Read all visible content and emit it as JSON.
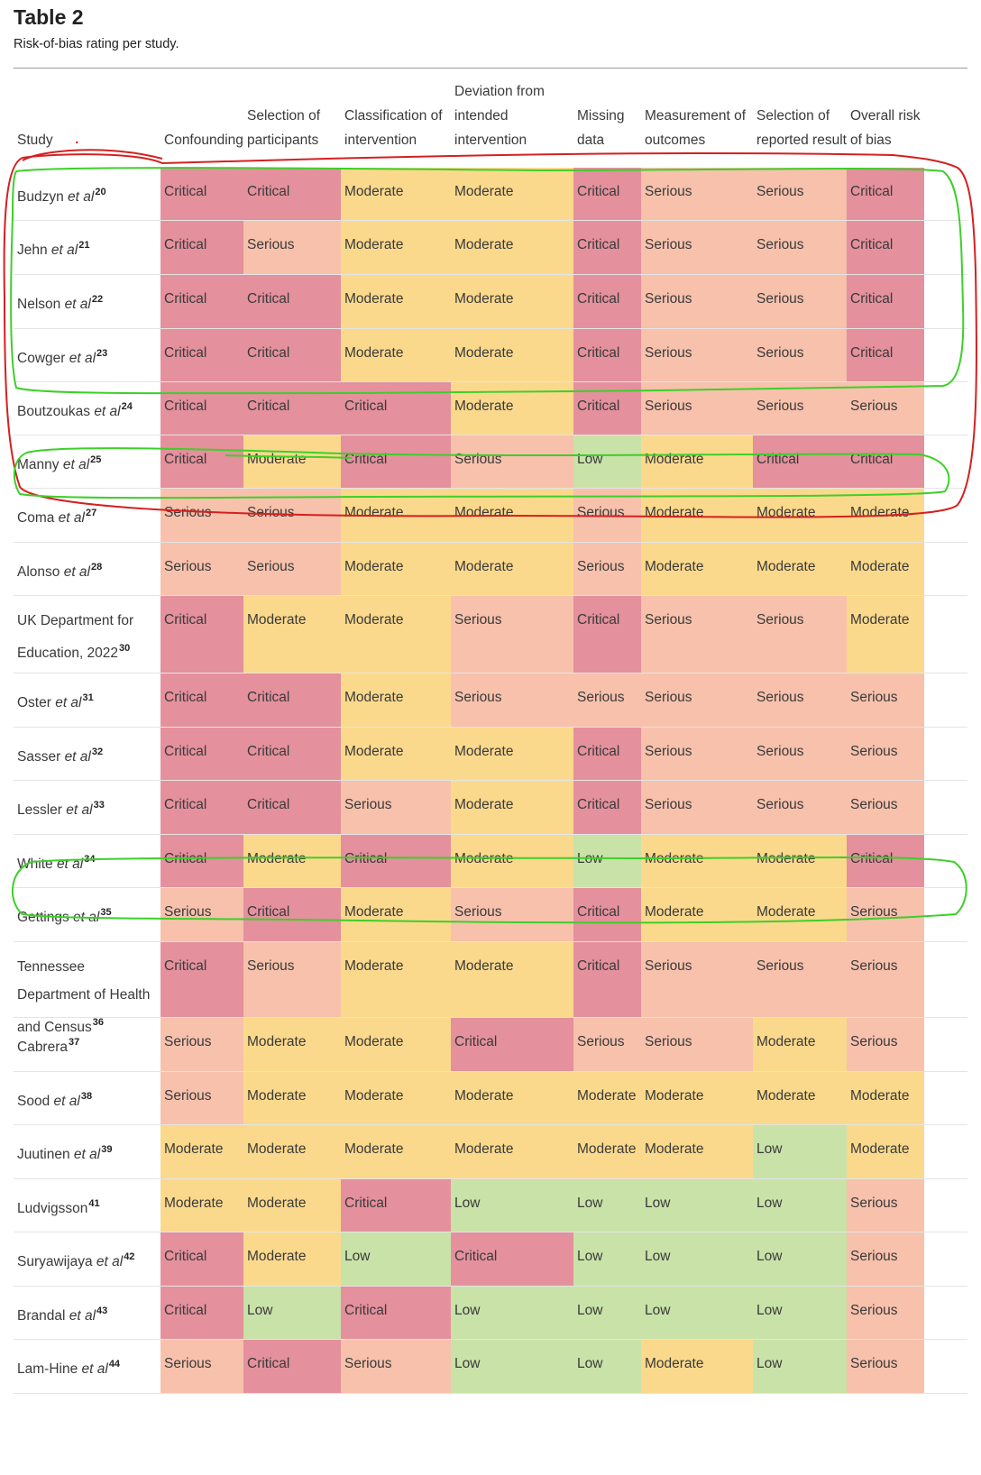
{
  "title": "Table 2",
  "subtitle": "Risk-of-bias rating per study.",
  "header": {
    "study": "Study",
    "columns": [
      [
        "Confounding"
      ],
      [
        "Selection of",
        "participants"
      ],
      [
        "Classification of",
        "intervention"
      ],
      [
        "Deviation from",
        "intended",
        "intervention"
      ],
      [
        "Missing",
        "data"
      ],
      [
        "Measurement of",
        "outcomes"
      ],
      [
        "Selection of",
        "reported result"
      ],
      [
        "Overall risk",
        "of bias"
      ]
    ]
  },
  "rows": [
    {
      "name": "Budzyn",
      "etal": true,
      "ref": "20",
      "ratings": [
        "Critical",
        "Critical",
        "Moderate",
        "Moderate",
        "Critical",
        "Serious",
        "Serious",
        "Critical"
      ]
    },
    {
      "name": "Jehn",
      "etal": true,
      "ref": "21",
      "ratings": [
        "Critical",
        "Serious",
        "Moderate",
        "Moderate",
        "Critical",
        "Serious",
        "Serious",
        "Critical"
      ]
    },
    {
      "name": "Nelson",
      "etal": true,
      "ref": "22",
      "ratings": [
        "Critical",
        "Critical",
        "Moderate",
        "Moderate",
        "Critical",
        "Serious",
        "Serious",
        "Critical"
      ]
    },
    {
      "name": "Cowger",
      "etal": true,
      "ref": "23",
      "ratings": [
        "Critical",
        "Critical",
        "Moderate",
        "Moderate",
        "Critical",
        "Serious",
        "Serious",
        "Critical"
      ]
    },
    {
      "name": "Boutzoukas",
      "etal": true,
      "ref": "24",
      "ratings": [
        "Critical",
        "Critical",
        "Critical",
        "Moderate",
        "Critical",
        "Serious",
        "Serious",
        "Serious"
      ]
    },
    {
      "name": "Manny",
      "etal": true,
      "ref": "25",
      "ratings": [
        "Critical",
        "Moderate",
        "Critical",
        "Serious",
        "Low",
        "Moderate",
        "Critical",
        "Critical"
      ]
    },
    {
      "name": "Coma",
      "etal": true,
      "ref": "27",
      "ratings": [
        "Serious",
        "Serious",
        "Moderate",
        "Moderate",
        "Serious",
        "Moderate",
        "Moderate",
        "Moderate"
      ]
    },
    {
      "name": "Alonso",
      "etal": true,
      "ref": "28",
      "ratings": [
        "Serious",
        "Serious",
        "Moderate",
        "Moderate",
        "Serious",
        "Moderate",
        "Moderate",
        "Moderate"
      ]
    },
    {
      "name": "UK Department for Education, 2022",
      "etal": false,
      "ref": "30",
      "ratings": [
        "Critical",
        "Moderate",
        "Moderate",
        "Serious",
        "Critical",
        "Serious",
        "Serious",
        "Moderate"
      ]
    },
    {
      "name": "Oster",
      "etal": true,
      "ref": "31",
      "ratings": [
        "Critical",
        "Critical",
        "Moderate",
        "Serious",
        "Serious",
        "Serious",
        "Serious",
        "Serious"
      ]
    },
    {
      "name": "Sasser",
      "etal": true,
      "ref": "32",
      "ratings": [
        "Critical",
        "Critical",
        "Moderate",
        "Moderate",
        "Critical",
        "Serious",
        "Serious",
        "Serious"
      ]
    },
    {
      "name": "Lessler",
      "etal": true,
      "ref": "33",
      "ratings": [
        "Critical",
        "Critical",
        "Serious",
        "Moderate",
        "Critical",
        "Serious",
        "Serious",
        "Serious"
      ]
    },
    {
      "name": "White",
      "etal": true,
      "ref": "34",
      "ratings": [
        "Critical",
        "Moderate",
        "Critical",
        "Moderate",
        "Low",
        "Moderate",
        "Moderate",
        "Critical"
      ]
    },
    {
      "name": "Gettings",
      "etal": true,
      "ref": "35",
      "ratings": [
        "Serious",
        "Critical",
        "Moderate",
        "Serious",
        "Critical",
        "Moderate",
        "Moderate",
        "Serious"
      ]
    },
    {
      "name": "Tennessee Department of Health and Census",
      "etal": false,
      "ref": "36",
      "ratings": [
        "Critical",
        "Serious",
        "Moderate",
        "Moderate",
        "Critical",
        "Serious",
        "Serious",
        "Serious"
      ]
    },
    {
      "name": "Cabrera",
      "etal": false,
      "ref": "37",
      "ratings": [
        "Serious",
        "Moderate",
        "Moderate",
        "Critical",
        "Serious",
        "Serious",
        "Moderate",
        "Serious"
      ]
    },
    {
      "name": "Sood",
      "etal": true,
      "ref": "38",
      "ratings": [
        "Serious",
        "Moderate",
        "Moderate",
        "Moderate",
        "Moderate",
        "Moderate",
        "Moderate",
        "Moderate"
      ]
    },
    {
      "name": "Juutinen",
      "etal": true,
      "ref": "39",
      "ratings": [
        "Moderate",
        "Moderate",
        "Moderate",
        "Moderate",
        "Moderate",
        "Moderate",
        "Low",
        "Moderate"
      ]
    },
    {
      "name": "Ludvigsson",
      "etal": false,
      "ref": "41",
      "ratings": [
        "Moderate",
        "Moderate",
        "Critical",
        "Low",
        "Low",
        "Low",
        "Low",
        "Serious"
      ]
    },
    {
      "name": "Suryawijaya",
      "etal": true,
      "ref": "42",
      "ratings": [
        "Critical",
        "Moderate",
        "Low",
        "Critical",
        "Low",
        "Low",
        "Low",
        "Serious"
      ]
    },
    {
      "name": "Brandal",
      "etal": true,
      "ref": "43",
      "ratings": [
        "Critical",
        "Low",
        "Critical",
        "Low",
        "Low",
        "Low",
        "Low",
        "Serious"
      ]
    },
    {
      "name": "Lam-Hine",
      "etal": true,
      "ref": "44",
      "ratings": [
        "Serious",
        "Critical",
        "Serious",
        "Low",
        "Low",
        "Moderate",
        "Low",
        "Serious"
      ]
    }
  ],
  "etal_text": "et al",
  "colors": {
    "Critical": "#e4909d",
    "Serious": "#f7c1ac",
    "Moderate": "#fbd98c",
    "Low": "#c9e2a8",
    "annotation_red": "#d42020",
    "annotation_green": "#3ecf2a"
  }
}
